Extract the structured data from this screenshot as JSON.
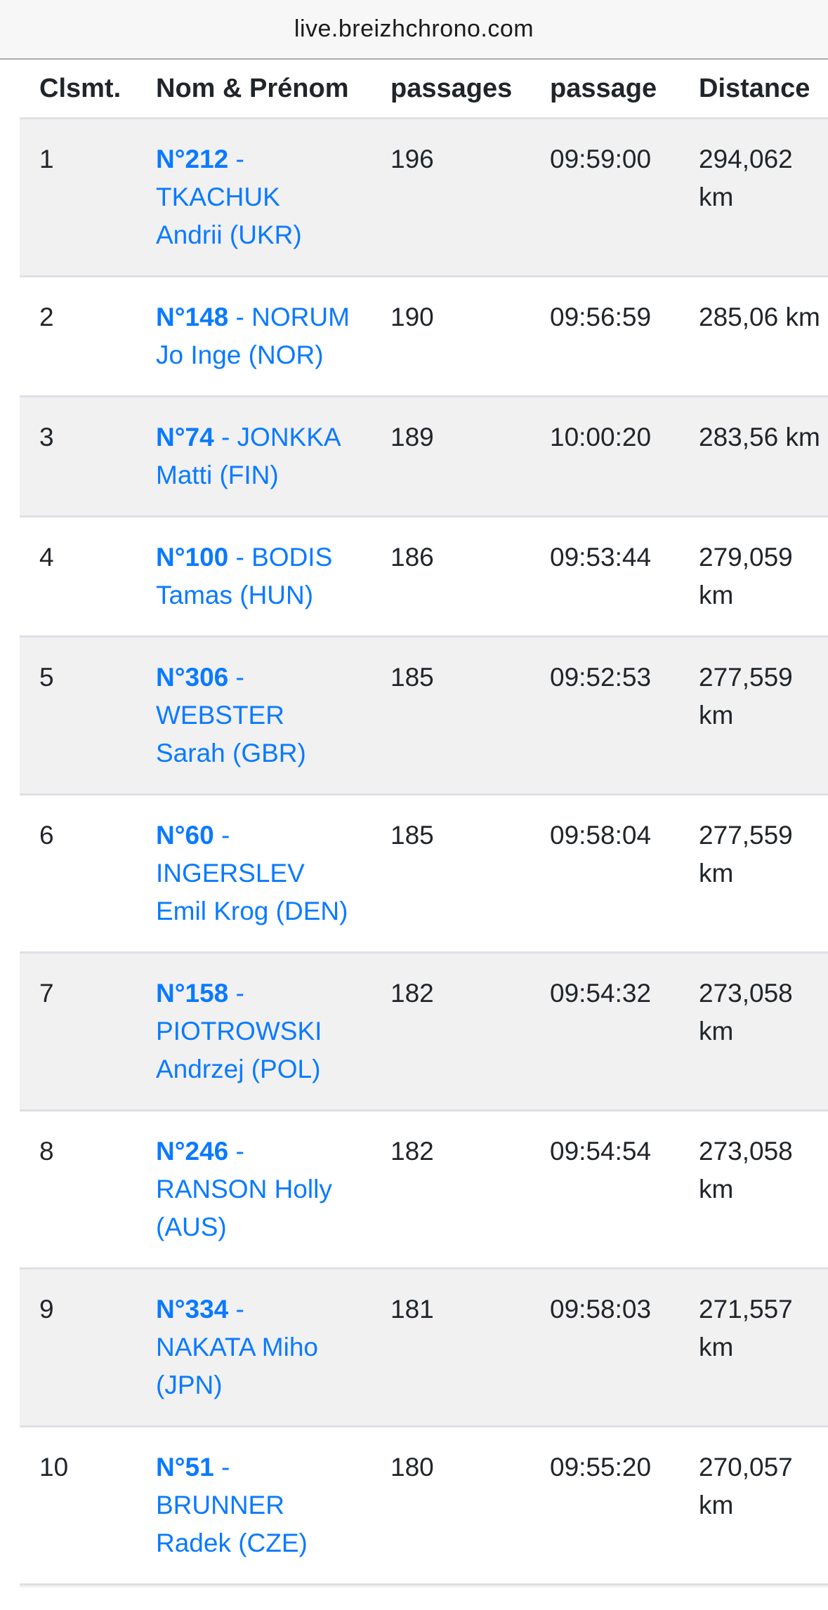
{
  "browser": {
    "url": "live.breizhchrono.com"
  },
  "table": {
    "columns": [
      {
        "key": "rank",
        "label": "Clsmt."
      },
      {
        "key": "name",
        "label": "Nom & Prénom"
      },
      {
        "key": "passages",
        "label": "passages"
      },
      {
        "key": "passage",
        "label": "passage"
      },
      {
        "key": "distance",
        "label": "Distance"
      }
    ],
    "rows": [
      {
        "rank": "1",
        "bib": "N°212",
        "name": "- TKACHUK Andrii (UKR)",
        "passages": "196",
        "passage": "09:59:00",
        "distance": "294,062 km"
      },
      {
        "rank": "2",
        "bib": "N°148",
        "name": "- NORUM Jo Inge (NOR)",
        "passages": "190",
        "passage": "09:56:59",
        "distance": "285,06 km"
      },
      {
        "rank": "3",
        "bib": "N°74",
        "name": "- JONKKA Matti (FIN)",
        "passages": "189",
        "passage": "10:00:20",
        "distance": "283,56 km"
      },
      {
        "rank": "4",
        "bib": "N°100",
        "name": "- BODIS Tamas (HUN)",
        "passages": "186",
        "passage": "09:53:44",
        "distance": "279,059 km"
      },
      {
        "rank": "5",
        "bib": "N°306",
        "name": "- WEBSTER Sarah (GBR)",
        "passages": "185",
        "passage": "09:52:53",
        "distance": "277,559 km"
      },
      {
        "rank": "6",
        "bib": "N°60",
        "name": "- INGERSLEV Emil Krog (DEN)",
        "passages": "185",
        "passage": "09:58:04",
        "distance": "277,559 km"
      },
      {
        "rank": "7",
        "bib": "N°158",
        "name": "- PIOTROWSKI Andrzej (POL)",
        "passages": "182",
        "passage": "09:54:32",
        "distance": "273,058 km"
      },
      {
        "rank": "8",
        "bib": "N°246",
        "name": "- RANSON Holly (AUS)",
        "passages": "182",
        "passage": "09:54:54",
        "distance": "273,058 km"
      },
      {
        "rank": "9",
        "bib": "N°334",
        "name": "- NAKATA Miho (JPN)",
        "passages": "181",
        "passage": "09:58:03",
        "distance": "271,557 km"
      },
      {
        "rank": "10",
        "bib": "N°51",
        "name": "- BRUNNER Radek (CZE)",
        "passages": "180",
        "passage": "09:55:20",
        "distance": "270,057 km"
      }
    ]
  },
  "colors": {
    "link_blue": "#0a7aff",
    "stripe_gray": "#f1f1f2",
    "row_border": "#dde0e5",
    "urlbar_bg": "#f7f7f8",
    "text": "#212529"
  }
}
